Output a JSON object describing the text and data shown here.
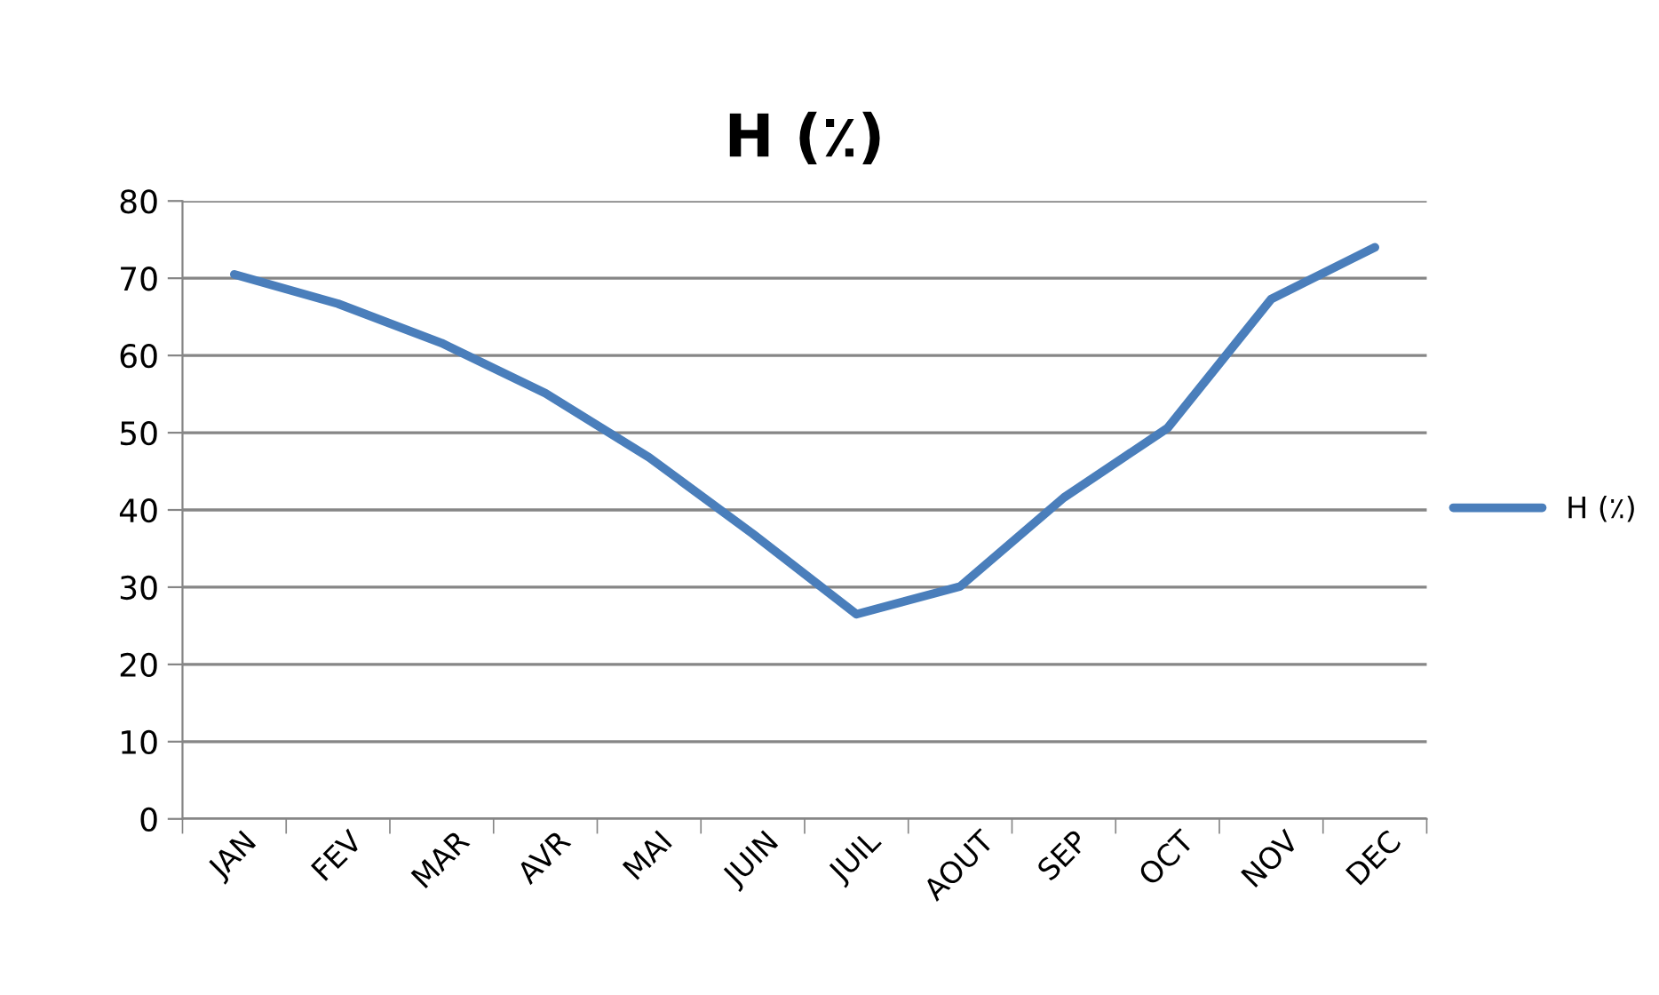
{
  "chart_data": {
    "type": "line",
    "title": "H (٪)",
    "categories": [
      "JAN",
      "FEV",
      "MAR",
      "AVR",
      "MAI",
      "JUIN",
      "JUIL",
      "AOUT",
      "SEP",
      "OCT",
      "NOV",
      "DEC"
    ],
    "series": [
      {
        "name": "H (٪)",
        "color": "#4a7ebb",
        "values": [
          70.5,
          66.7,
          61.6,
          55.1,
          46.8,
          36.9,
          26.5,
          30.1,
          41.6,
          50.6,
          67.3,
          74.0
        ]
      }
    ],
    "ylim": [
      0,
      80
    ],
    "yticks": [
      0,
      10,
      20,
      30,
      40,
      50,
      60,
      70,
      80
    ],
    "grid": "y",
    "legend": "right",
    "marker": "none",
    "line_style": "solid"
  }
}
